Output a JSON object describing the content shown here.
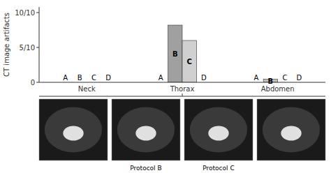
{
  "chart_data": {
    "type": "bar",
    "categories": [
      "Neck",
      "Thorax",
      "Abdomen"
    ],
    "series": [
      {
        "name": "A",
        "color": "#c0c0c0",
        "values": [
          0,
          0,
          0
        ]
      },
      {
        "name": "B",
        "colors": [
          "#c0c0c0",
          "#a0a0a0",
          "#c0c0c0"
        ],
        "values": [
          0,
          8.2,
          0.45
        ]
      },
      {
        "name": "C",
        "colors": [
          "#c0c0c0",
          "#d0d0d0",
          "#c0c0c0"
        ],
        "values": [
          0,
          6.0,
          0
        ]
      },
      {
        "name": "D",
        "color": "#c0c0c0",
        "values": [
          0,
          0,
          0
        ]
      }
    ],
    "y_label": "CT image artifacts",
    "ylim": [
      0,
      10.8
    ],
    "yticks": [
      0,
      {
        "value": 5,
        "label": "5/10"
      },
      {
        "value": 10,
        "label": "10/10"
      }
    ],
    "annotations": [
      "Protocol B",
      "Protocol C"
    ],
    "grid": false
  }
}
